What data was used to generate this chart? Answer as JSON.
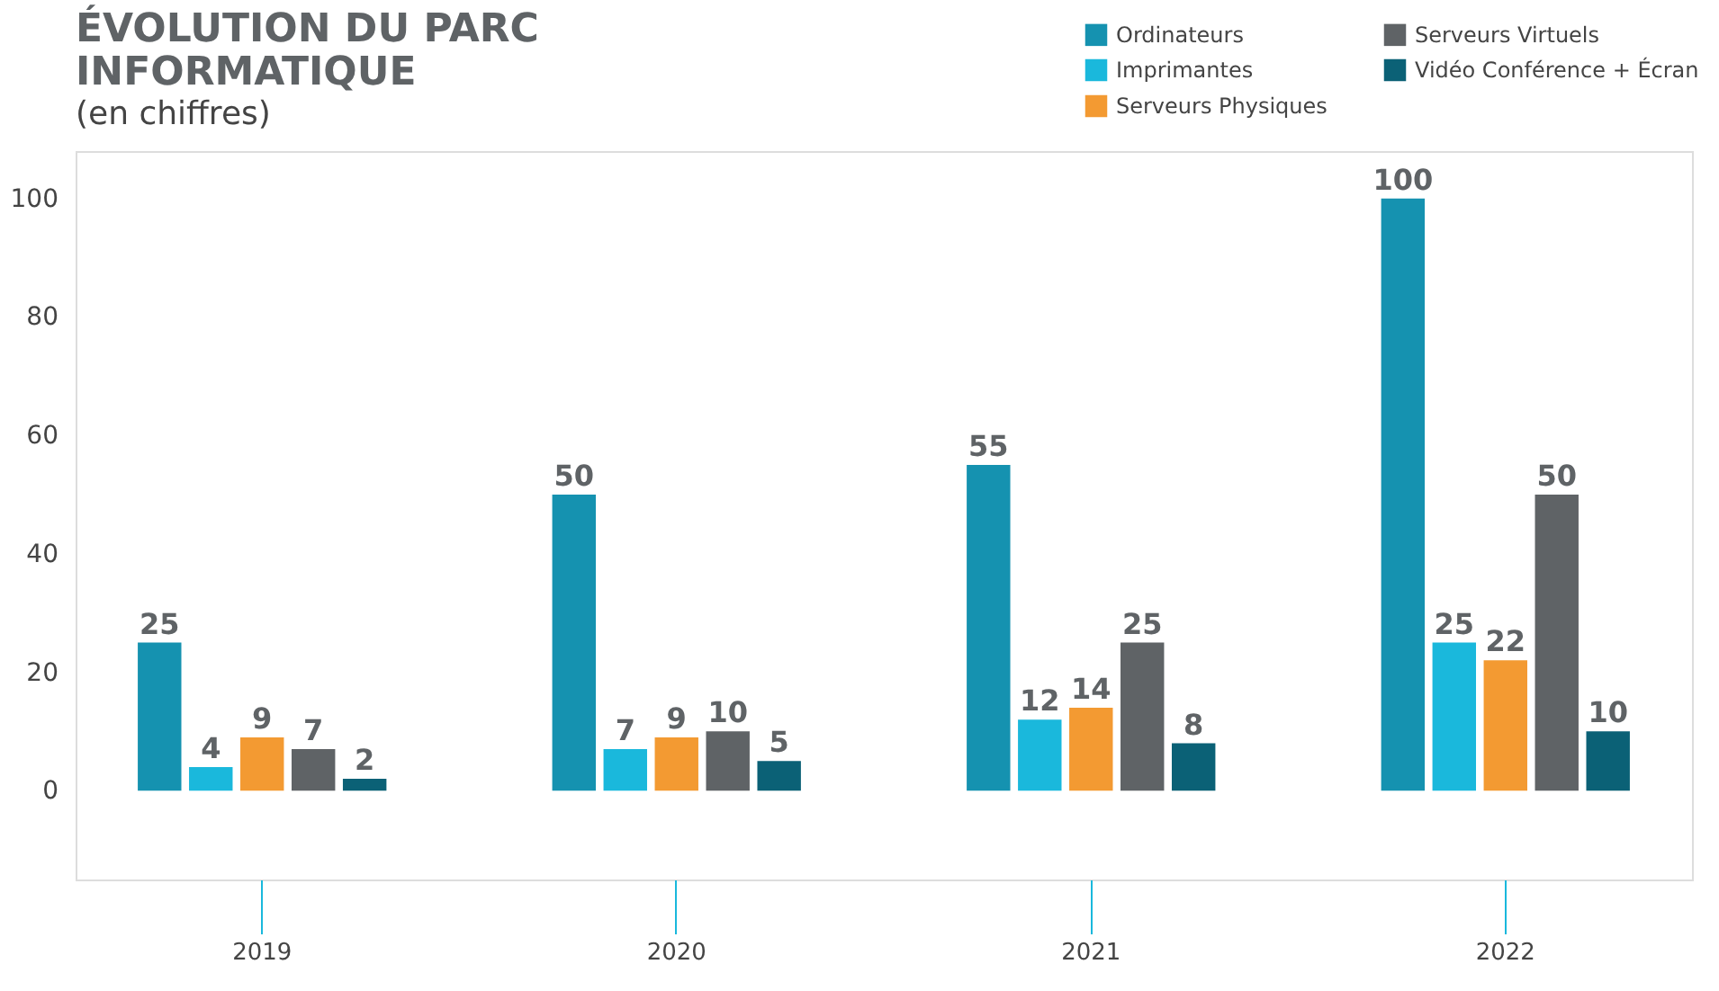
{
  "chart_data": {
    "type": "bar",
    "title": [
      "ÉVOLUTION DU PARC",
      "INFORMATIQUE"
    ],
    "subtitle": "(en chiffres)",
    "categories": [
      "2019",
      "2020",
      "2021",
      "2022"
    ],
    "series": [
      {
        "name": "Ordinateurs",
        "color": "#1592b0",
        "values": [
          25,
          50,
          55,
          100
        ]
      },
      {
        "name": "Imprimantes",
        "color": "#1ab8dc",
        "values": [
          4,
          7,
          12,
          25
        ]
      },
      {
        "name": "Serveurs Physiques",
        "color": "#f39a32",
        "values": [
          9,
          9,
          14,
          22
        ]
      },
      {
        "name": "Serveurs Virtuels",
        "color": "#5f6366",
        "values": [
          7,
          10,
          25,
          50
        ]
      },
      {
        "name": "Vidéo Conférence + Écran",
        "color": "#0b6176",
        "values": [
          2,
          5,
          8,
          10
        ]
      }
    ],
    "ylim": [
      -15,
      108
    ],
    "yticks": [
      0,
      20,
      40,
      60,
      80,
      100
    ],
    "grid": false,
    "legend": "top right",
    "data_labels": true
  }
}
